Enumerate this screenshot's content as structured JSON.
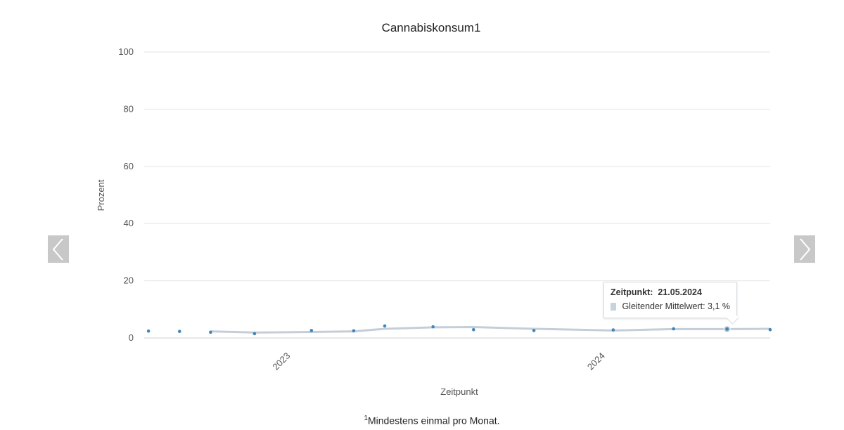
{
  "chart_data": {
    "type": "line",
    "title": "Cannabiskonsum",
    "title_sup": "1",
    "xlabel": "Zeitpunkt",
    "ylabel": "Prozent",
    "ylim": [
      0,
      100
    ],
    "yticks": [
      0,
      20,
      40,
      60,
      80,
      100
    ],
    "xlim": [
      "2022-07-15",
      "2024-07-10"
    ],
    "xticks": [
      {
        "label": "2023",
        "date": "2023-01-01"
      },
      {
        "label": "2024",
        "date": "2024-01-01"
      }
    ],
    "grid": true,
    "series": [
      {
        "name": "Gleitender Mittelwert",
        "color": "#c5ced8",
        "points": [
          {
            "x": "2022-09-30",
            "y": 2.3
          },
          {
            "x": "2022-11-20",
            "y": 1.9
          },
          {
            "x": "2023-01-25",
            "y": 2.1
          },
          {
            "x": "2023-03-15",
            "y": 2.3
          },
          {
            "x": "2023-04-20",
            "y": 3.2
          },
          {
            "x": "2023-06-15",
            "y": 3.7
          },
          {
            "x": "2023-08-01",
            "y": 3.8
          },
          {
            "x": "2023-10-10",
            "y": 3.2
          },
          {
            "x": "2024-01-10",
            "y": 2.6
          },
          {
            "x": "2024-03-20",
            "y": 3.1
          },
          {
            "x": "2024-05-21",
            "y": 3.1
          },
          {
            "x": "2024-07-10",
            "y": 3.2
          }
        ]
      },
      {
        "color": "#3f86b8",
        "points": [
          {
            "x": "2022-07-20",
            "y": 2.4
          },
          {
            "x": "2022-08-25",
            "y": 2.3
          },
          {
            "x": "2022-09-30",
            "y": 2.0
          },
          {
            "x": "2022-11-20",
            "y": 1.5
          },
          {
            "x": "2023-01-25",
            "y": 2.6
          },
          {
            "x": "2023-03-15",
            "y": 2.5
          },
          {
            "x": "2023-04-20",
            "y": 4.2
          },
          {
            "x": "2023-06-15",
            "y": 3.9
          },
          {
            "x": "2023-08-01",
            "y": 2.9
          },
          {
            "x": "2023-10-10",
            "y": 2.6
          },
          {
            "x": "2024-01-10",
            "y": 2.8
          },
          {
            "x": "2024-03-20",
            "y": 3.2
          },
          {
            "x": "2024-05-21",
            "y": 3.2
          },
          {
            "x": "2024-07-10",
            "y": 2.9
          }
        ]
      }
    ]
  },
  "tooltip": {
    "label": "Zeitpunkt:",
    "date": "21.05.2024",
    "series": "Gleitender Mittelwert: 3,1 %"
  },
  "footnote": {
    "marker": "1",
    "text": "Mindestens einmal pro Monat."
  },
  "nav": {
    "prev_icon": "chevron-left-icon",
    "next_icon": "chevron-right-icon"
  }
}
